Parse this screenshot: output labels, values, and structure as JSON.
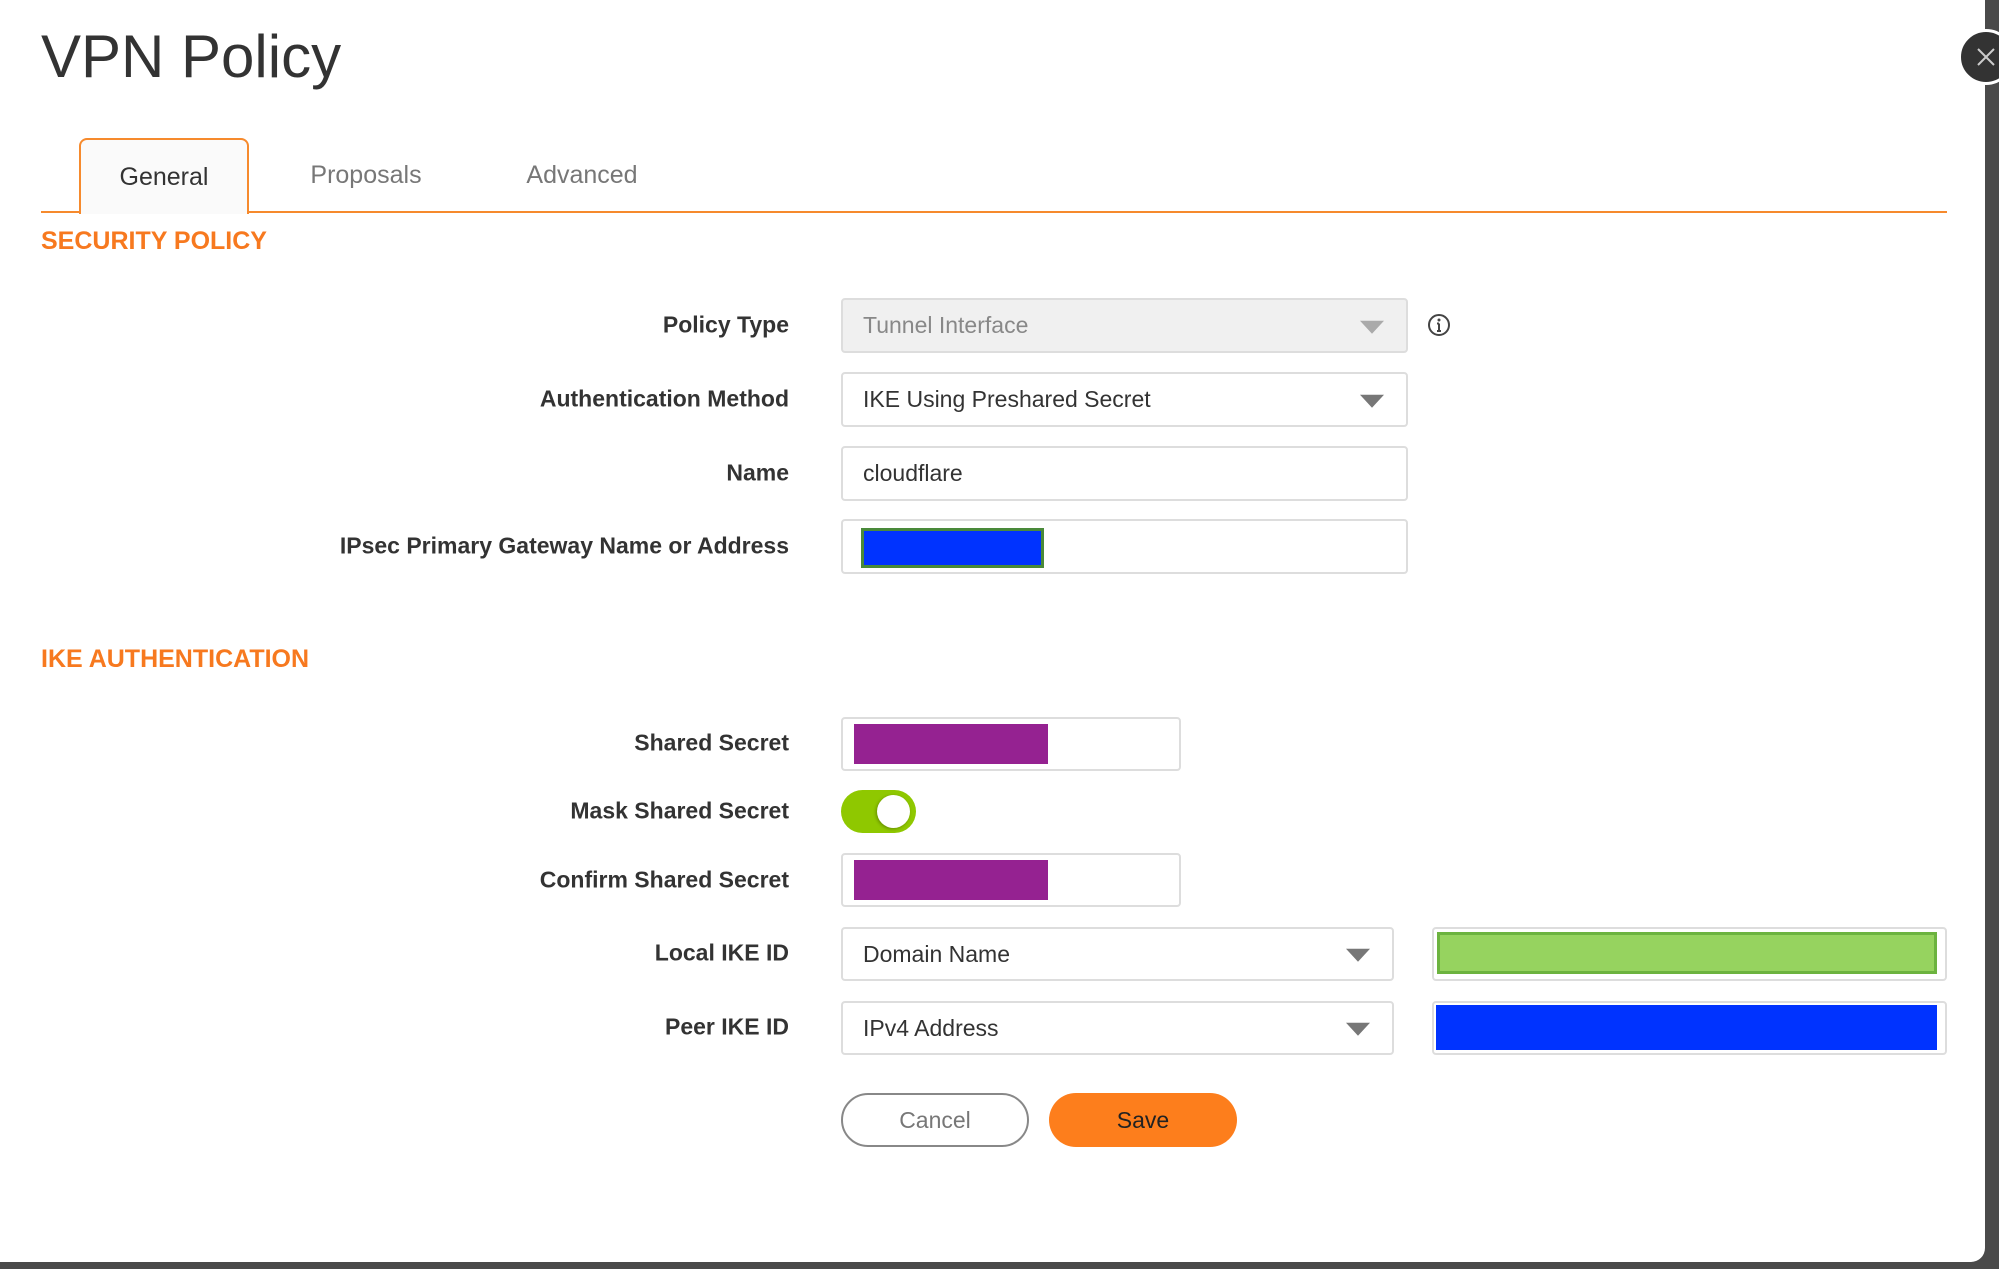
{
  "dialog": {
    "title": "VPN Policy"
  },
  "tabs": [
    {
      "label": "General",
      "active": true
    },
    {
      "label": "Proposals"
    },
    {
      "label": "Advanced"
    }
  ],
  "security_policy": {
    "heading": "SECURITY POLICY",
    "policy_type": {
      "label": "Policy Type",
      "value": "Tunnel Interface",
      "disabled": true,
      "info_icon": "info-circle-icon"
    },
    "auth_method": {
      "label": "Authentication Method",
      "value": "IKE Using Preshared Secret"
    },
    "name": {
      "label": "Name",
      "value": "cloudflare"
    },
    "gateway": {
      "label": "IPsec Primary Gateway Name or Address",
      "redaction_color": "#0033ff"
    }
  },
  "ike_auth": {
    "heading": "IKE AUTHENTICATION",
    "shared_secret": {
      "label": "Shared Secret",
      "redaction_color": "#952291"
    },
    "mask_shared_secret": {
      "label": "Mask Shared Secret",
      "on": true,
      "color": "#8fc800"
    },
    "confirm_shared_secret": {
      "label": "Confirm Shared Secret",
      "redaction_color": "#952291"
    },
    "local_ike_id": {
      "label": "Local IKE ID",
      "type": "Domain Name",
      "redaction_color": "#96d35f"
    },
    "peer_ike_id": {
      "label": "Peer IKE ID",
      "type": "IPv4 Address",
      "redaction_color": "#0033ff"
    }
  },
  "buttons": {
    "cancel": "Cancel",
    "save": "Save"
  },
  "colors": {
    "accent": "#f7791f"
  }
}
